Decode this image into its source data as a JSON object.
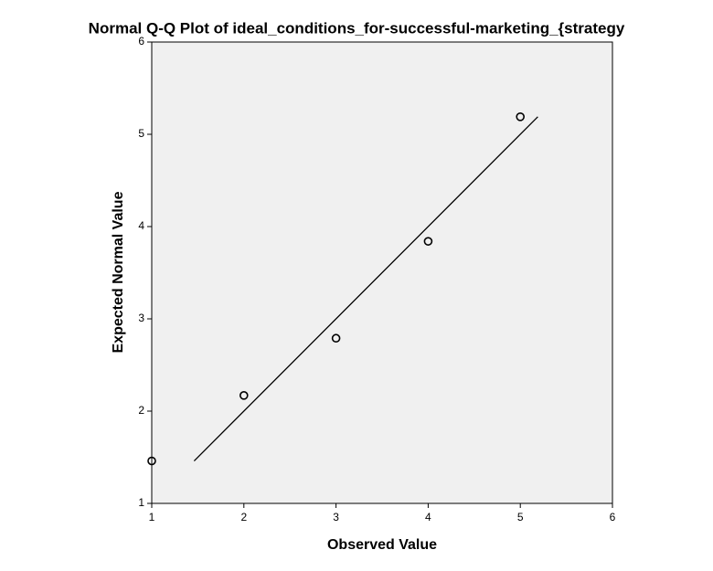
{
  "chart_data": {
    "type": "scatter",
    "title": "Normal Q-Q Plot of ideal_conditions_for-successful-marketing_{strategy",
    "x_label": "Observed Value",
    "y_label": "Expected Normal Value",
    "xlim": [
      1,
      6
    ],
    "ylim": [
      1,
      6
    ],
    "xticks": [
      1,
      2,
      3,
      4,
      5,
      6
    ],
    "yticks": [
      1,
      2,
      3,
      4,
      5,
      6
    ],
    "plot_background": "#f0f0f0",
    "series": [
      {
        "type": "scatter",
        "color": "#000000",
        "x": [
          1,
          2,
          3,
          4,
          5
        ],
        "values": [
          1.46,
          2.17,
          2.79,
          3.84,
          5.19
        ]
      },
      {
        "type": "line",
        "color": "#000000",
        "x": [
          1.46,
          5.19
        ],
        "values": [
          1.46,
          5.19
        ]
      }
    ]
  }
}
